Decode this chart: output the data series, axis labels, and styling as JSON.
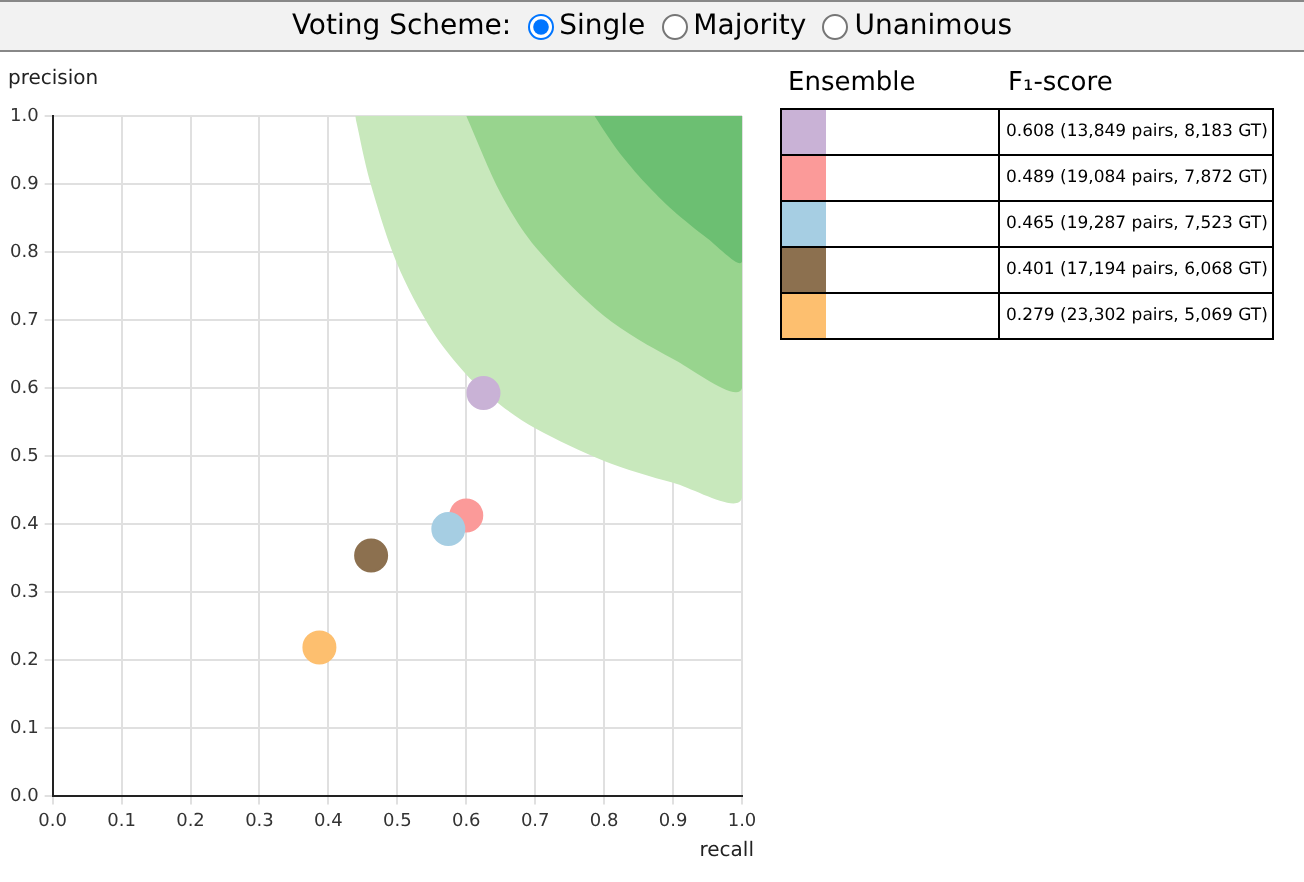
{
  "chart_data": {
    "type": "scatter",
    "xlabel": "recall",
    "ylabel": "precision",
    "series": [
      {
        "type": "area",
        "color": "#c8e8bc",
        "x": [
          0.439,
          0.44,
          0.46,
          0.5,
          0.55,
          0.6,
          0.65,
          0.7,
          0.8,
          0.9,
          1.0,
          1.0
        ],
        "values": [
          1.0,
          0.994,
          0.905,
          0.782,
          0.685,
          0.62,
          0.575,
          0.541,
          0.493,
          0.461,
          0.439,
          1.0
        ]
      },
      {
        "type": "area",
        "color": "#98d48e",
        "x": [
          0.6,
          0.65,
          0.7,
          0.8,
          0.9,
          1.0,
          1.0
        ],
        "values": [
          1.0,
          0.886,
          0.808,
          0.706,
          0.643,
          0.6,
          1.0
        ]
      },
      {
        "type": "area",
        "color": "#6cbf72",
        "x": [
          0.786,
          0.82,
          0.86,
          0.9,
          0.95,
          1.0,
          1.0
        ],
        "values": [
          1.0,
          0.949,
          0.901,
          0.861,
          0.82,
          0.786,
          1.0
        ]
      },
      {
        "marker": "circle",
        "x": [
          0.625,
          0.6,
          0.574,
          0.462,
          0.387
        ],
        "values": [
          0.593,
          0.413,
          0.393,
          0.354,
          0.219
        ],
        "colors": [
          "#c9b2d6",
          "#fb9a99",
          "#a6cee3",
          "#8c704f",
          "#fdbf6f"
        ]
      }
    ],
    "xlim": [
      0,
      1
    ],
    "ylim": [
      0,
      1
    ],
    "xticks": [
      {
        "value": 0,
        "label": "0.0"
      },
      0.1,
      0.2,
      0.3,
      0.4,
      0.5,
      0.6,
      0.7,
      0.8,
      0.9,
      {
        "value": 1,
        "label": "1.0"
      }
    ],
    "yticks": [
      {
        "value": 0,
        "label": "0.0"
      },
      0.1,
      0.2,
      0.3,
      0.4,
      0.5,
      0.6,
      0.7,
      0.8,
      0.9,
      {
        "value": 1,
        "label": "1.0"
      }
    ],
    "grid": true,
    "legend": false,
    "annotations": [
      "Voting Scheme:",
      "Single",
      "Majority",
      "Unanimous",
      "Ensemble",
      "F₁-score",
      "0.608 (13,849 pairs, 8,183 GT)",
      "0.489 (19,084 pairs, 7,872 GT)",
      "0.465 (19,287 pairs, 7,523 GT)",
      "0.401 (17,194 pairs, 6,068 GT)",
      "0.279 (23,302 pairs, 5,069 GT)"
    ]
  }
}
